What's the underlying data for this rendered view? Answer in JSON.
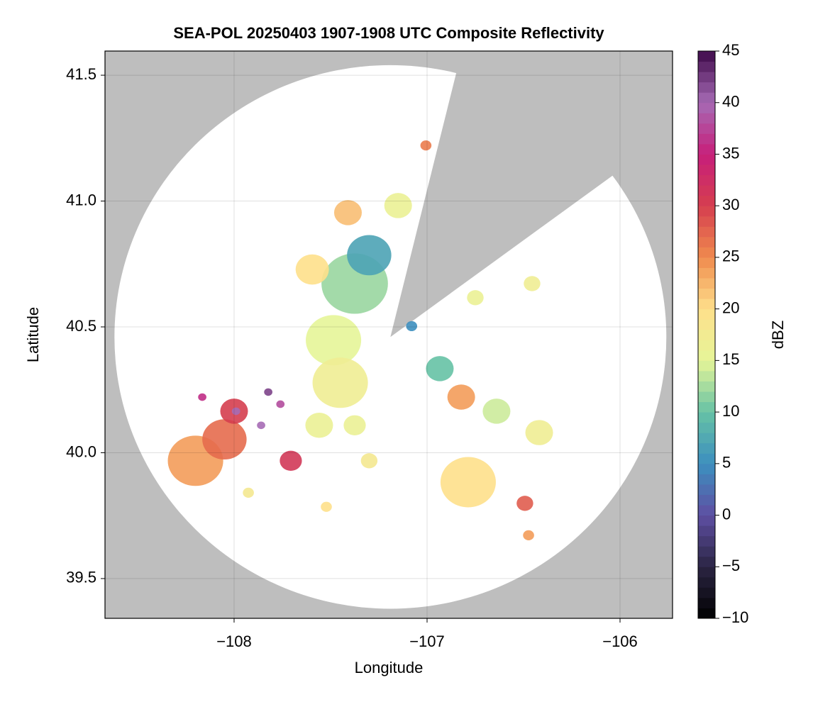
{
  "chart_data": {
    "type": "radar-map",
    "title": "SEA-POL 20250403 1907-1908 UTC Composite Reflectivity",
    "xlabel": "Longitude",
    "ylabel": "Latitude",
    "xlim": [
      -108.669,
      -105.728
    ],
    "ylim": [
      39.342,
      41.596
    ],
    "xticks": [
      {
        "value": -108,
        "label": "−108"
      },
      {
        "value": -107,
        "label": "−107"
      },
      {
        "value": -106,
        "label": "−106"
      }
    ],
    "yticks": [
      39.5,
      {
        "value": 40,
        "label": "40.0"
      },
      40.5,
      {
        "value": 41,
        "label": "41.0"
      },
      41.5
    ],
    "grid": true,
    "background_color": "#bebebe",
    "coverage": {
      "center_lon": -107.19,
      "center_lat": 40.46,
      "radius_lon": 1.43,
      "radius_lat": 1.08,
      "blocked_azimuth": [
        14,
        54
      ],
      "color": "#ffffff"
    },
    "colorbar": {
      "label": "dBZ",
      "clim": [
        -10,
        45
      ],
      "ticks": [
        {
          "value": -10,
          "label": "−10"
        },
        {
          "value": -5,
          "label": "−5"
        },
        0,
        5,
        10,
        15,
        20,
        25,
        30,
        35,
        40,
        45
      ],
      "colors": [
        "#000000",
        "#2b2543",
        "#5e4fa2",
        "#3d8fbf",
        "#66c2a5",
        "#e6f598",
        "#fee08b",
        "#f08b4e",
        "#d53e4f",
        "#c71f7a",
        "#a66bb5",
        "#3f0a4a"
      ]
    },
    "echoes": {
      "lon": [
        -107.375,
        -107.485,
        -107.45,
        -107.3,
        -107.41,
        -107.595,
        -107.15,
        -107.006,
        -108.2,
        -108.05,
        -108.0,
        -107.99,
        -107.823,
        -107.86,
        -107.76,
        -108.165,
        -107.706,
        -106.823,
        -106.787,
        -106.934,
        -106.493,
        -106.474,
        -106.419,
        -106.64,
        -106.75,
        -106.456,
        -107.559,
        -107.522,
        -107.375,
        -107.3,
        -107.08,
        -107.926
      ],
      "lat": [
        40.672,
        40.447,
        40.278,
        40.785,
        40.954,
        40.728,
        40.982,
        41.221,
        39.968,
        40.053,
        40.165,
        40.165,
        40.241,
        40.109,
        40.193,
        40.221,
        39.968,
        40.221,
        39.883,
        40.334,
        39.799,
        39.672,
        40.08,
        40.165,
        40.616,
        40.672,
        40.109,
        39.785,
        40.109,
        39.968,
        40.503,
        39.841
      ],
      "dbz": [
        12,
        15,
        17,
        7,
        22,
        20,
        16,
        26,
        24,
        27,
        30,
        40,
        42,
        40,
        38,
        36,
        31,
        24,
        20,
        10,
        28,
        24,
        17,
        14,
        16,
        17,
        16,
        20,
        16,
        18,
        5,
        18
      ],
      "radius": [
        0.12,
        0.1,
        0.1,
        0.08,
        0.05,
        0.06,
        0.05,
        0.02,
        0.1,
        0.08,
        0.05,
        0.015,
        0.015,
        0.015,
        0.015,
        0.015,
        0.04,
        0.05,
        0.1,
        0.05,
        0.03,
        0.02,
        0.05,
        0.05,
        0.03,
        0.03,
        0.05,
        0.02,
        0.04,
        0.03,
        0.02,
        0.02
      ]
    }
  }
}
